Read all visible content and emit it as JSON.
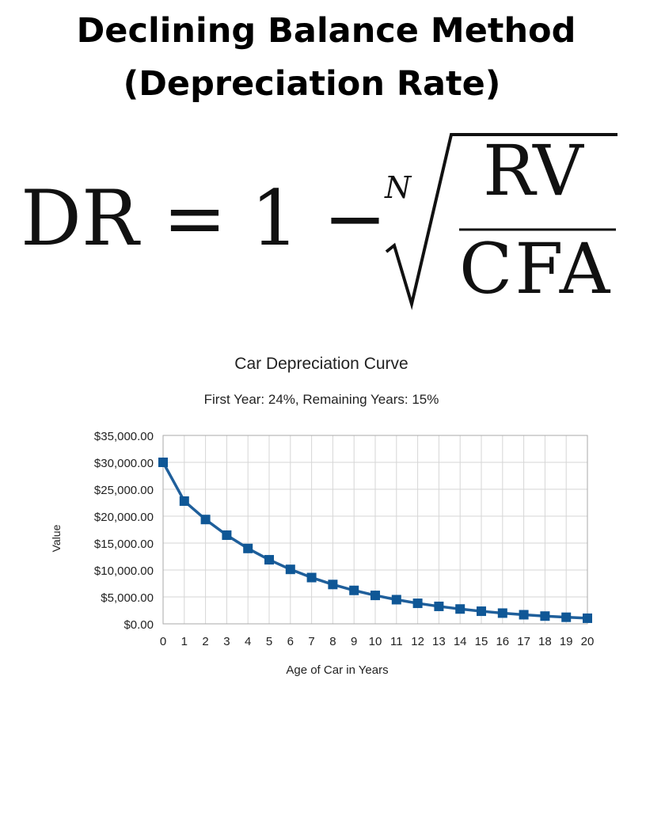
{
  "header": {
    "title_line_1": "Declining Balance Method",
    "title_line_2": "(Depreciation Rate)"
  },
  "formula": {
    "lhs": "DR = 1 −",
    "root_index": "N",
    "numerator": "RV",
    "denominator": "CFA"
  },
  "chart_data": {
    "type": "line",
    "title": "Car Depreciation Curve",
    "subtitle": "First Year: 24%, Remaining Years: 15%",
    "xlabel": "Age of Car in Years",
    "ylabel": "Value",
    "x": [
      0,
      1,
      2,
      3,
      4,
      5,
      6,
      7,
      8,
      9,
      10,
      11,
      12,
      13,
      14,
      15,
      16,
      17,
      18,
      19,
      20
    ],
    "series": [
      {
        "values": [
          30000,
          22800,
          19380,
          16473,
          14002,
          11902,
          10116,
          8599,
          7309,
          6213,
          5281,
          4489,
          3815,
          3243,
          2757,
          2343,
          1992,
          1693,
          1439,
          1223,
          1040
        ]
      }
    ],
    "ylim": [
      0,
      35000
    ],
    "yticks": [
      0,
      5000,
      10000,
      15000,
      20000,
      25000,
      30000,
      35000
    ],
    "ytick_labels": [
      "$0.00",
      "$5,000.00",
      "$10,000.00",
      "$15,000.00",
      "$20,000.00",
      "$25,000.00",
      "$30,000.00",
      "$35,000.00"
    ],
    "grid": true,
    "legend": "none",
    "colors": {
      "line": "#1f5f9b",
      "marker": "#0f5796",
      "grid": "#d6d6d6",
      "axis": "#aaaaaa"
    }
  }
}
